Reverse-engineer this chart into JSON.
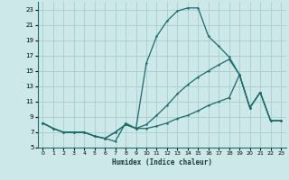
{
  "xlabel": "Humidex (Indice chaleur)",
  "bg_color": "#cce8e8",
  "grid_color": "#aacccc",
  "line_color": "#1a6b6b",
  "xlim": [
    -0.5,
    23.5
  ],
  "ylim": [
    5,
    24
  ],
  "yticks": [
    5,
    7,
    9,
    11,
    13,
    15,
    17,
    19,
    21,
    23
  ],
  "xticks": [
    0,
    1,
    2,
    3,
    4,
    5,
    6,
    7,
    8,
    9,
    10,
    11,
    12,
    13,
    14,
    15,
    16,
    17,
    18,
    19,
    20,
    21,
    22,
    23
  ],
  "line1_x": [
    0,
    1,
    2,
    3,
    4,
    5,
    6,
    7,
    8,
    9,
    10,
    11,
    12,
    13,
    14,
    15,
    16,
    17,
    18,
    19,
    20,
    21,
    22,
    23
  ],
  "line1_y": [
    8.2,
    7.5,
    7.0,
    7.0,
    7.0,
    6.5,
    6.2,
    5.8,
    8.2,
    7.5,
    16.0,
    19.5,
    21.5,
    22.8,
    23.2,
    23.2,
    19.5,
    18.2,
    16.8,
    14.5,
    10.2,
    12.2,
    8.5,
    8.5
  ],
  "line2_x": [
    0,
    1,
    2,
    3,
    4,
    5,
    6,
    7,
    8,
    9,
    10,
    11,
    12,
    13,
    14,
    15,
    16,
    17,
    18,
    19,
    20,
    21,
    22,
    23
  ],
  "line2_y": [
    8.2,
    7.5,
    7.0,
    7.0,
    7.0,
    6.5,
    6.2,
    7.0,
    8.0,
    7.5,
    8.0,
    9.2,
    10.5,
    12.0,
    13.2,
    14.2,
    15.0,
    15.8,
    16.5,
    14.5,
    10.2,
    12.2,
    8.5,
    8.5
  ],
  "line3_x": [
    0,
    1,
    2,
    3,
    4,
    5,
    6,
    7,
    8,
    9,
    10,
    11,
    12,
    13,
    14,
    15,
    16,
    17,
    18,
    19,
    20,
    21,
    22,
    23
  ],
  "line3_y": [
    8.2,
    7.5,
    7.0,
    7.0,
    7.0,
    6.5,
    6.2,
    7.0,
    8.0,
    7.5,
    7.5,
    7.8,
    8.2,
    8.8,
    9.2,
    9.8,
    10.5,
    11.0,
    11.5,
    14.5,
    10.2,
    12.2,
    8.5,
    8.5
  ]
}
